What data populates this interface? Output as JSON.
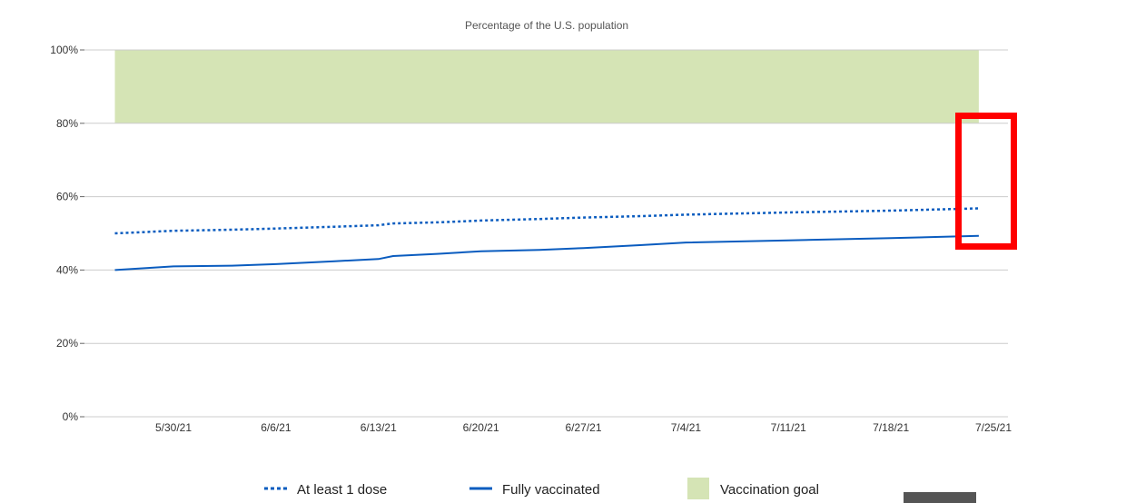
{
  "chart_data": {
    "type": "line",
    "title": "Percentage of the U.S. population",
    "xlabel": "",
    "ylabel": "",
    "ylim": [
      0,
      100
    ],
    "yticks": [
      "0%",
      "20%",
      "40%",
      "60%",
      "80%",
      "100%"
    ],
    "ytick_values": [
      0,
      20,
      40,
      60,
      80,
      100
    ],
    "xticks": [
      "5/30/21",
      "6/6/21",
      "6/13/21",
      "6/20/21",
      "6/27/21",
      "7/4/21",
      "7/11/21",
      "7/18/21",
      "7/25/21"
    ],
    "xtick_dates": [
      "2021-05-30",
      "2021-06-06",
      "2021-06-13",
      "2021-06-20",
      "2021-06-27",
      "2021-07-04",
      "2021-07-11",
      "2021-07-18",
      "2021-07-25"
    ],
    "xlim": [
      "2021-05-22",
      "2021-07-26"
    ],
    "grid": true,
    "legend_position": "bottom",
    "x": [
      "2021-05-26",
      "2021-05-30",
      "2021-06-03",
      "2021-06-06",
      "2021-06-10",
      "2021-06-13",
      "2021-06-14",
      "2021-06-17",
      "2021-06-20",
      "2021-06-24",
      "2021-06-27",
      "2021-07-01",
      "2021-07-04",
      "2021-07-11",
      "2021-07-18",
      "2021-07-24"
    ],
    "series": [
      {
        "name": "At least 1 dose",
        "style": "dotted",
        "color": "#0a5cbf",
        "values": [
          50.0,
          50.7,
          51.0,
          51.3,
          51.8,
          52.2,
          52.7,
          53.0,
          53.5,
          53.9,
          54.3,
          54.7,
          55.1,
          55.7,
          56.2,
          56.8
        ]
      },
      {
        "name": "Fully vaccinated",
        "style": "solid",
        "color": "#0a5cbf",
        "values": [
          40.0,
          41.0,
          41.2,
          41.6,
          42.4,
          43.0,
          43.8,
          44.4,
          45.1,
          45.5,
          46.0,
          46.8,
          47.5,
          48.1,
          48.7,
          49.3
        ]
      }
    ],
    "bands": [
      {
        "name": "Vaccination goal",
        "color": "#d5e4b5",
        "y_from": 80,
        "y_to": 100,
        "x_from": "2021-05-26",
        "x_to": "2021-07-24"
      }
    ],
    "highlight_color": "#ff0000"
  }
}
